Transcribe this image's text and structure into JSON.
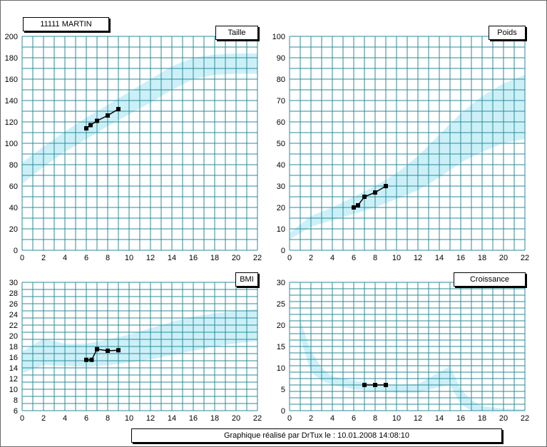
{
  "patient_label": "11111 MARTIN",
  "footer_text": "Graphique réalisé par DrTux le : 10.01.2008 14:08:10",
  "colors": {
    "grid": "#2b8b9a",
    "band": "#ccf0f8",
    "line": "#000000"
  },
  "chart_data": [
    {
      "type": "line",
      "title": "Taille",
      "xlim": [
        0,
        22
      ],
      "ylim": [
        0,
        200
      ],
      "x_ticks": [
        "0",
        "2",
        "4",
        "6",
        "8",
        "10",
        "12",
        "14",
        "16",
        "18",
        "20",
        "22"
      ],
      "y_ticks": [
        "0",
        "20",
        "40",
        "60",
        "80",
        "100",
        "120",
        "140",
        "160",
        "180",
        "200"
      ],
      "grid": true,
      "series": [
        {
          "x": [
            6,
            6.4,
            7,
            8,
            9
          ],
          "y": [
            114,
            117,
            121,
            126,
            132
          ]
        }
      ],
      "reference_band": {
        "x": [
          0,
          2,
          4,
          6,
          8,
          10,
          12,
          14,
          16,
          18,
          20,
          22
        ],
        "lower": [
          62,
          78,
          92,
          104,
          116,
          127,
          138,
          150,
          160,
          164,
          165,
          165
        ],
        "upper": [
          82,
          97,
          111,
          124,
          136,
          148,
          160,
          172,
          180,
          183,
          184,
          184
        ]
      }
    },
    {
      "type": "line",
      "title": "Poids",
      "xlim": [
        0,
        22
      ],
      "ylim": [
        0,
        100
      ],
      "x_ticks": [
        "0",
        "2",
        "4",
        "6",
        "8",
        "10",
        "12",
        "14",
        "16",
        "18",
        "20",
        "22"
      ],
      "y_ticks": [
        "0",
        "10",
        "20",
        "30",
        "40",
        "50",
        "60",
        "70",
        "80",
        "90",
        "100"
      ],
      "grid": true,
      "series": [
        {
          "x": [
            6,
            6.4,
            7,
            8,
            9
          ],
          "y": [
            20,
            21,
            25,
            27,
            30
          ]
        }
      ],
      "reference_band": {
        "x": [
          0,
          2,
          4,
          6,
          8,
          10,
          12,
          14,
          16,
          18,
          20,
          22
        ],
        "lower": [
          5,
          11,
          14,
          17,
          20,
          24,
          28,
          34,
          41,
          46,
          50,
          52
        ],
        "upper": [
          8,
          16,
          20,
          25,
          30,
          36,
          44,
          54,
          64,
          72,
          78,
          82
        ]
      }
    },
    {
      "type": "line",
      "title": "BMI",
      "xlim": [
        0,
        22
      ],
      "ylim": [
        6,
        30
      ],
      "x_ticks": [
        "0",
        "2",
        "4",
        "6",
        "8",
        "10",
        "12",
        "14",
        "16",
        "18",
        "20",
        "22"
      ],
      "y_ticks": [
        "6",
        "8",
        "10",
        "12",
        "14",
        "16",
        "18",
        "20",
        "22",
        "24",
        "26",
        "28",
        "30"
      ],
      "grid": true,
      "series": [
        {
          "x": [
            6,
            6.5,
            7,
            8,
            9
          ],
          "y": [
            15.5,
            15.5,
            17.5,
            17.2,
            17.3
          ]
        }
      ],
      "reference_band": {
        "x": [
          0,
          2,
          4,
          6,
          8,
          10,
          12,
          14,
          16,
          18,
          20,
          22
        ],
        "lower": [
          13,
          14.5,
          14.4,
          14.2,
          14.5,
          15,
          15.6,
          16.4,
          17.2,
          18,
          18.6,
          19
        ],
        "upper": [
          17,
          19.5,
          18.5,
          18.5,
          19.3,
          20.2,
          21.4,
          22.6,
          23.6,
          24.2,
          24.6,
          25
        ]
      }
    },
    {
      "type": "line",
      "title": "Croissance",
      "xlim": [
        0,
        22
      ],
      "ylim": [
        0,
        30
      ],
      "x_ticks": [
        "0",
        "2",
        "4",
        "6",
        "8",
        "10",
        "12",
        "14",
        "16",
        "18",
        "20",
        "22"
      ],
      "y_ticks": [
        "0",
        "5",
        "10",
        "15",
        "20",
        "25",
        "30"
      ],
      "grid": true,
      "series": [
        {
          "x": [
            7,
            8,
            9
          ],
          "y": [
            6,
            6,
            6
          ]
        }
      ],
      "reference_band": {
        "x": [
          1,
          2,
          3,
          4,
          6,
          8,
          10,
          12,
          14,
          15,
          16,
          17,
          18,
          20,
          22
        ],
        "lower": [
          17,
          9,
          7,
          6,
          5,
          4.5,
          4.2,
          4.2,
          5.5,
          6,
          1.5,
          0,
          0,
          0,
          0
        ],
        "upper": [
          21,
          14,
          10,
          8,
          7,
          6.3,
          6,
          6.2,
          9,
          10.5,
          5,
          2.5,
          1,
          0.5,
          0.3
        ]
      }
    }
  ]
}
